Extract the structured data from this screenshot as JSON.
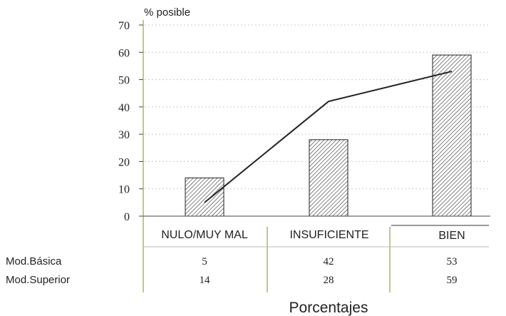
{
  "chart_data": {
    "type": "bar",
    "ylabel": "% posible",
    "xlabel": "Porcentajes",
    "ylim": [
      0,
      70
    ],
    "yticks": [
      "0",
      "10",
      "20",
      "30",
      "40",
      "50",
      "60",
      "70"
    ],
    "categories": [
      "NULO/MUY MAL",
      "INSUFICIENTE",
      "BIEN"
    ],
    "series": [
      {
        "name": "Mod.Superior",
        "render": "bar",
        "values": [
          14,
          28,
          59
        ],
        "labels": [
          "14",
          "28",
          "59"
        ]
      },
      {
        "name": "Mod.Básica",
        "render": "line",
        "values": [
          5,
          42,
          53
        ],
        "labels": [
          "5",
          "42",
          "53"
        ]
      }
    ],
    "grid": true,
    "colors": {
      "bar_hatch": "#222222",
      "line": "#222222",
      "grid": "#cccccc",
      "axis": "#8a8a2a"
    }
  }
}
